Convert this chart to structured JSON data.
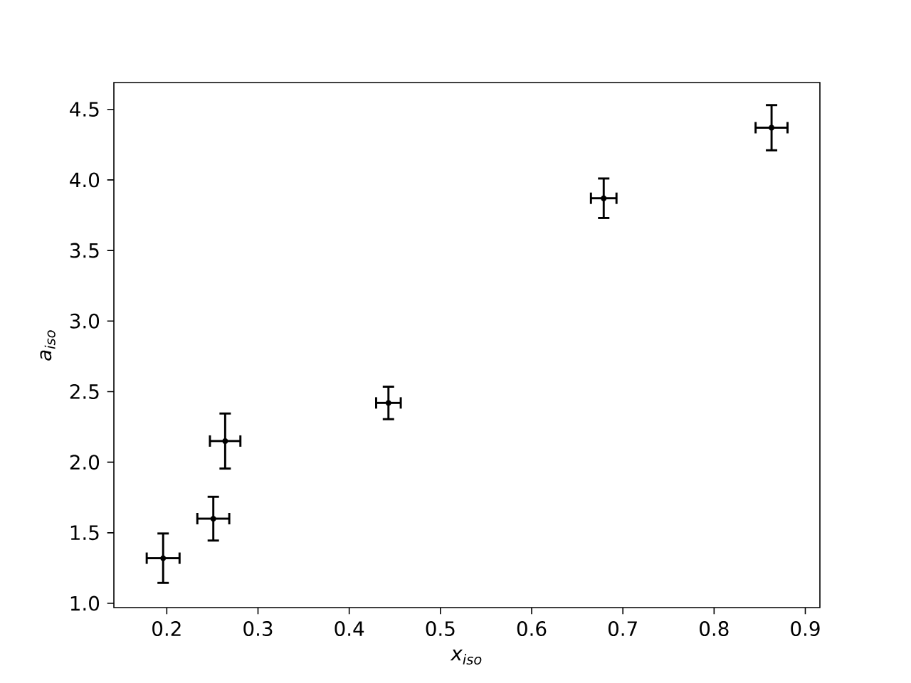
{
  "chart_data": {
    "type": "scatter",
    "xlabel": "x$_{iso}$",
    "ylabel": "a$_{iso}$",
    "color": "#000000",
    "x": [
      0.196,
      0.251,
      0.264,
      0.443,
      0.679,
      0.863
    ],
    "values": [
      1.32,
      1.6,
      2.15,
      2.42,
      3.87,
      4.37
    ],
    "errors": [
      0.175,
      0.155,
      0.195,
      0.115,
      0.14,
      0.16
    ],
    "xerrors": [
      0.018,
      0.0175,
      0.0167,
      0.0135,
      0.014,
      0.0175
    ],
    "xlim": [
      0.142,
      0.916
    ],
    "ylim": [
      0.97,
      4.69
    ],
    "xticks": [
      0.2,
      0.3,
      0.4,
      0.5,
      0.6,
      0.7,
      0.8,
      0.9
    ],
    "yticks": [
      {
        "value": 1,
        "label": "1.0"
      },
      1.5,
      {
        "value": 2,
        "label": "2.0"
      },
      2.5,
      {
        "value": 3,
        "label": "3.0"
      },
      3.5,
      {
        "value": 4,
        "label": "4.0"
      },
      4.5
    ]
  }
}
